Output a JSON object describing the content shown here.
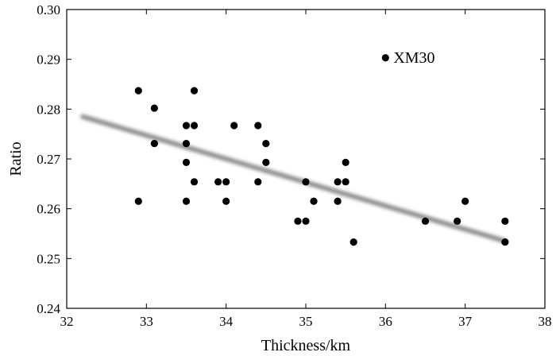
{
  "chart_data": {
    "type": "scatter",
    "title": "",
    "xlabel": "Thickness/km",
    "ylabel": "Ratio",
    "xlim": [
      32,
      38
    ],
    "ylim": [
      0.24,
      0.3
    ],
    "xticks": [
      32,
      33,
      34,
      35,
      36,
      37,
      38
    ],
    "yticks": [
      0.24,
      0.25,
      0.26,
      0.27,
      0.28,
      0.29,
      0.3
    ],
    "xtick_labels": [
      "32",
      "33",
      "34",
      "35",
      "36",
      "37",
      "38"
    ],
    "ytick_labels": [
      "0.24",
      "0.25",
      "0.26",
      "0.27",
      "0.28",
      "0.29",
      "0.30"
    ],
    "grid": false,
    "points": [
      {
        "x": 32.9,
        "y": 0.2837
      },
      {
        "x": 32.9,
        "y": 0.2615
      },
      {
        "x": 33.1,
        "y": 0.2802
      },
      {
        "x": 33.1,
        "y": 0.2731
      },
      {
        "x": 33.5,
        "y": 0.2767
      },
      {
        "x": 33.5,
        "y": 0.2731
      },
      {
        "x": 33.5,
        "y": 0.2693
      },
      {
        "x": 33.5,
        "y": 0.2615
      },
      {
        "x": 33.6,
        "y": 0.2837
      },
      {
        "x": 33.6,
        "y": 0.2767
      },
      {
        "x": 33.6,
        "y": 0.2654
      },
      {
        "x": 33.9,
        "y": 0.2654
      },
      {
        "x": 34.0,
        "y": 0.2654
      },
      {
        "x": 34.0,
        "y": 0.2615
      },
      {
        "x": 34.1,
        "y": 0.2767
      },
      {
        "x": 34.4,
        "y": 0.2767
      },
      {
        "x": 34.4,
        "y": 0.2654
      },
      {
        "x": 34.5,
        "y": 0.2731
      },
      {
        "x": 34.5,
        "y": 0.2693
      },
      {
        "x": 34.9,
        "y": 0.2575
      },
      {
        "x": 35.0,
        "y": 0.2654
      },
      {
        "x": 35.0,
        "y": 0.2575
      },
      {
        "x": 35.1,
        "y": 0.2615
      },
      {
        "x": 35.4,
        "y": 0.2654
      },
      {
        "x": 35.4,
        "y": 0.2615
      },
      {
        "x": 35.5,
        "y": 0.2693
      },
      {
        "x": 35.5,
        "y": 0.2654
      },
      {
        "x": 35.6,
        "y": 0.2533
      },
      {
        "x": 36.5,
        "y": 0.2575
      },
      {
        "x": 36.9,
        "y": 0.2575
      },
      {
        "x": 37.0,
        "y": 0.2615
      },
      {
        "x": 37.5,
        "y": 0.2575
      },
      {
        "x": 37.5,
        "y": 0.2533
      }
    ],
    "outlier": {
      "x": 36.0,
      "y": 0.2903,
      "label": "XM30"
    },
    "trend_line": {
      "x": [
        32.2,
        37.5
      ],
      "y": [
        0.2785,
        0.2535
      ],
      "color": "#8c8c8c"
    }
  }
}
